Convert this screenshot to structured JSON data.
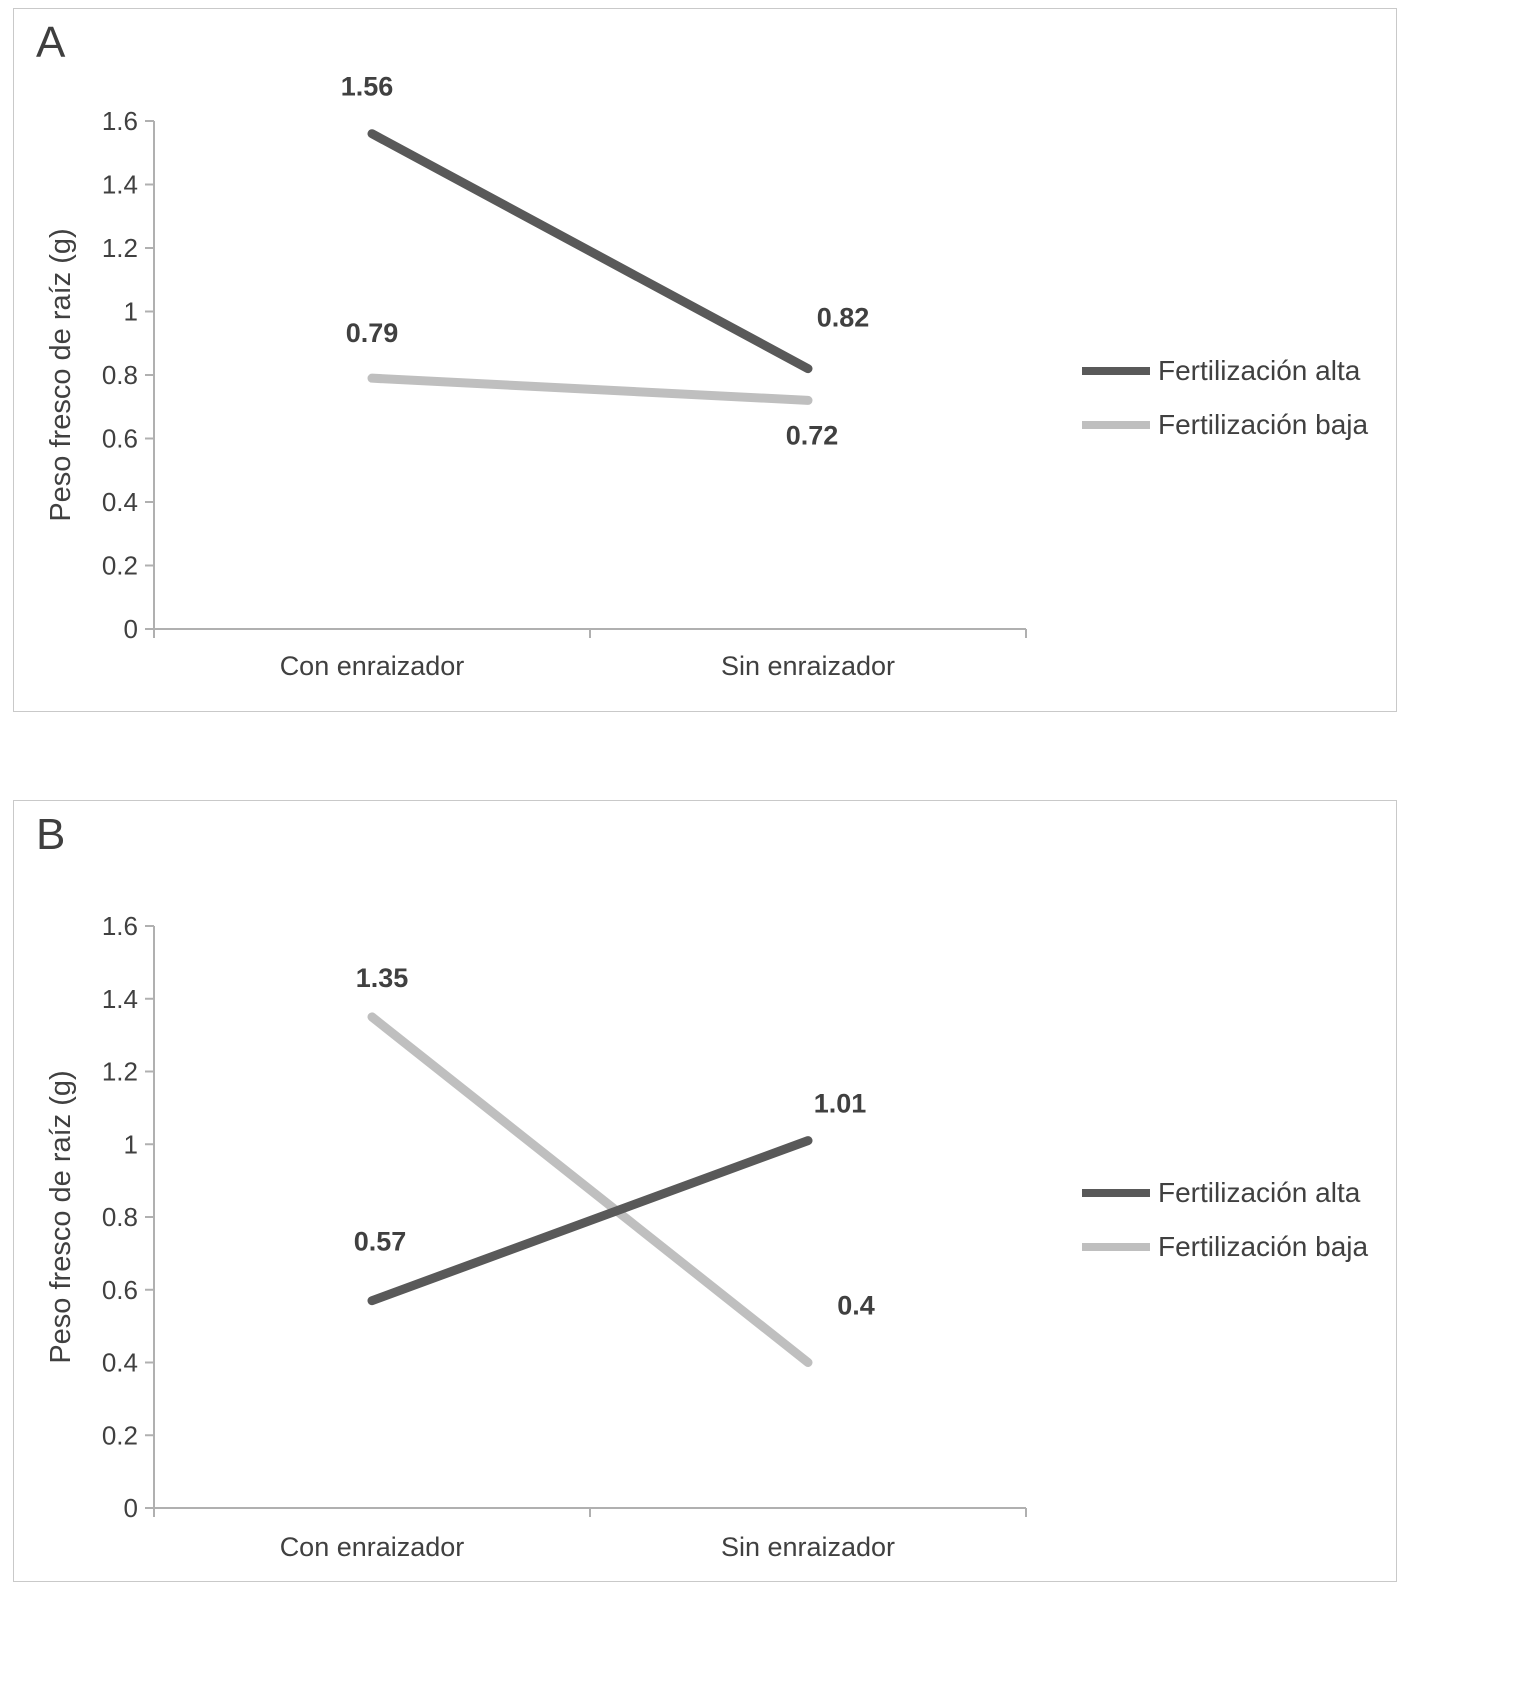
{
  "panels": [
    {
      "label": "A"
    },
    {
      "label": "B"
    }
  ],
  "chart_data": [
    {
      "type": "line",
      "panel": "A",
      "title": "",
      "xlabel": "",
      "ylabel": "Peso fresco de raíz (g)",
      "ylim": [
        0,
        1.6
      ],
      "ytick_labels": [
        "0",
        "0.2",
        "0.4",
        "0.6",
        "0.8",
        "1",
        "1.2",
        "1.4",
        "1.6"
      ],
      "categories": [
        "Con enraizador",
        "Sin enraizador"
      ],
      "grid": false,
      "legend_position": "right",
      "series": [
        {
          "name": "Fertilización alta",
          "color": "#595959",
          "values": [
            1.56,
            0.82
          ],
          "point_labels": [
            "1.56",
            "0.82"
          ],
          "label_offsets": [
            [
              -5,
              -38
            ],
            [
              35,
              -42
            ]
          ]
        },
        {
          "name": "Fertilización baja",
          "color": "#bfbfbf",
          "values": [
            0.79,
            0.72
          ],
          "point_labels": [
            "0.79",
            "0.72"
          ],
          "label_offsets": [
            [
              0,
              -36
            ],
            [
              4,
              44
            ]
          ]
        }
      ]
    },
    {
      "type": "line",
      "panel": "B",
      "title": "",
      "xlabel": "",
      "ylabel": "Peso fresco de raíz (g)",
      "ylim": [
        0,
        1.6
      ],
      "ytick_labels": [
        "0",
        "0.2",
        "0.4",
        "0.6",
        "0.8",
        "1",
        "1.2",
        "1.4",
        "1.6"
      ],
      "categories": [
        "Con enraizador",
        "Sin enraizador"
      ],
      "grid": false,
      "legend_position": "right",
      "series": [
        {
          "name": "Fertilización alta",
          "color": "#595959",
          "values": [
            0.57,
            1.01
          ],
          "point_labels": [
            "0.57",
            "1.01"
          ],
          "label_offsets": [
            [
              8,
              -50
            ],
            [
              32,
              -28
            ]
          ]
        },
        {
          "name": "Fertilización baja",
          "color": "#bfbfbf",
          "values": [
            1.35,
            0.4
          ],
          "point_labels": [
            "1.35",
            "0.4"
          ],
          "label_offsets": [
            [
              10,
              -30
            ],
            [
              48,
              -48
            ]
          ]
        }
      ]
    }
  ],
  "style": {
    "axis_color": "#b0b0b0",
    "text_color": "#404040",
    "data_label_color": "#404040"
  }
}
